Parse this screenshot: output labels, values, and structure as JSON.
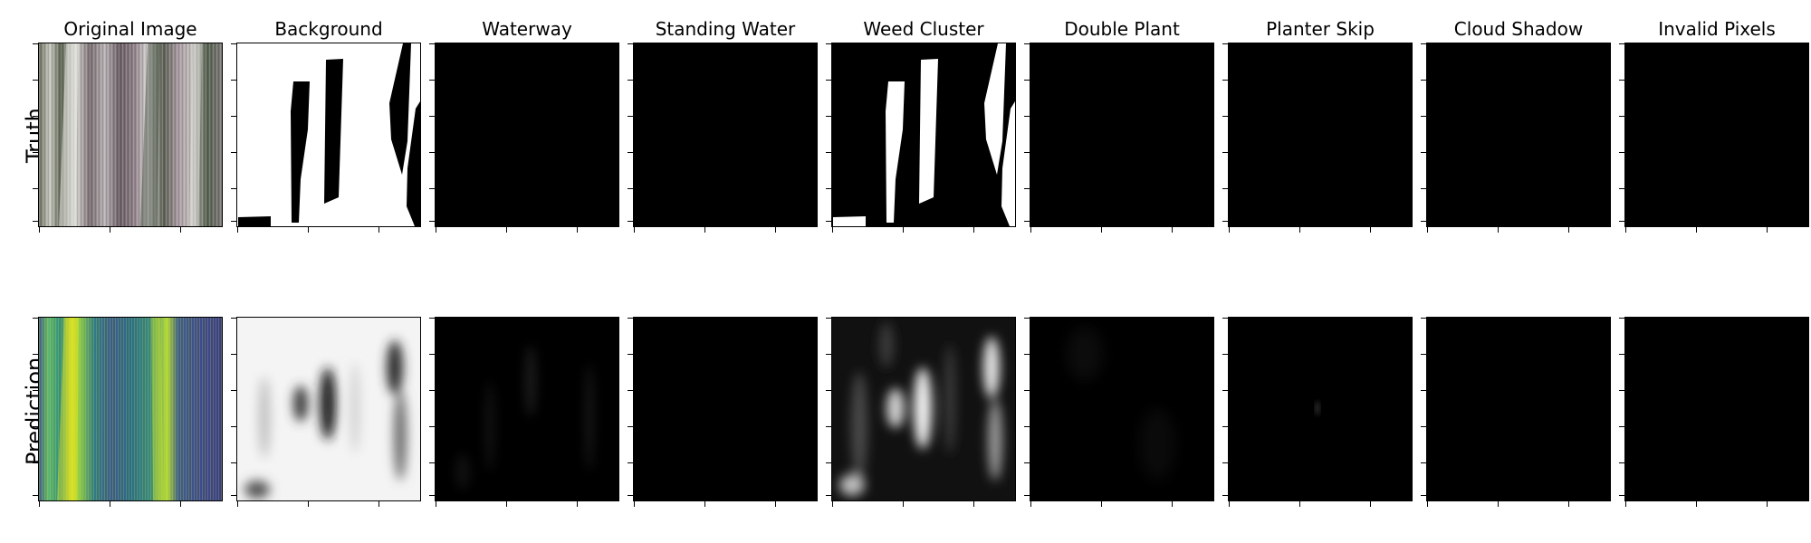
{
  "figure": {
    "column_titles": [
      "Original Image",
      "Background",
      "Waterway",
      "Standing Water",
      "Weed Cluster",
      "Double Plant",
      "Planter Skip",
      "Cloud Shadow",
      "Invalid Pixels"
    ],
    "row_labels": [
      "Truth",
      "Prediction"
    ],
    "colors": {
      "mask_fg": "#ffffff",
      "mask_bg": "#000000",
      "viridis_low": "#3b4f8c",
      "viridis_mid": "#2a8a7a",
      "viridis_high": "#e8e51a"
    }
  }
}
